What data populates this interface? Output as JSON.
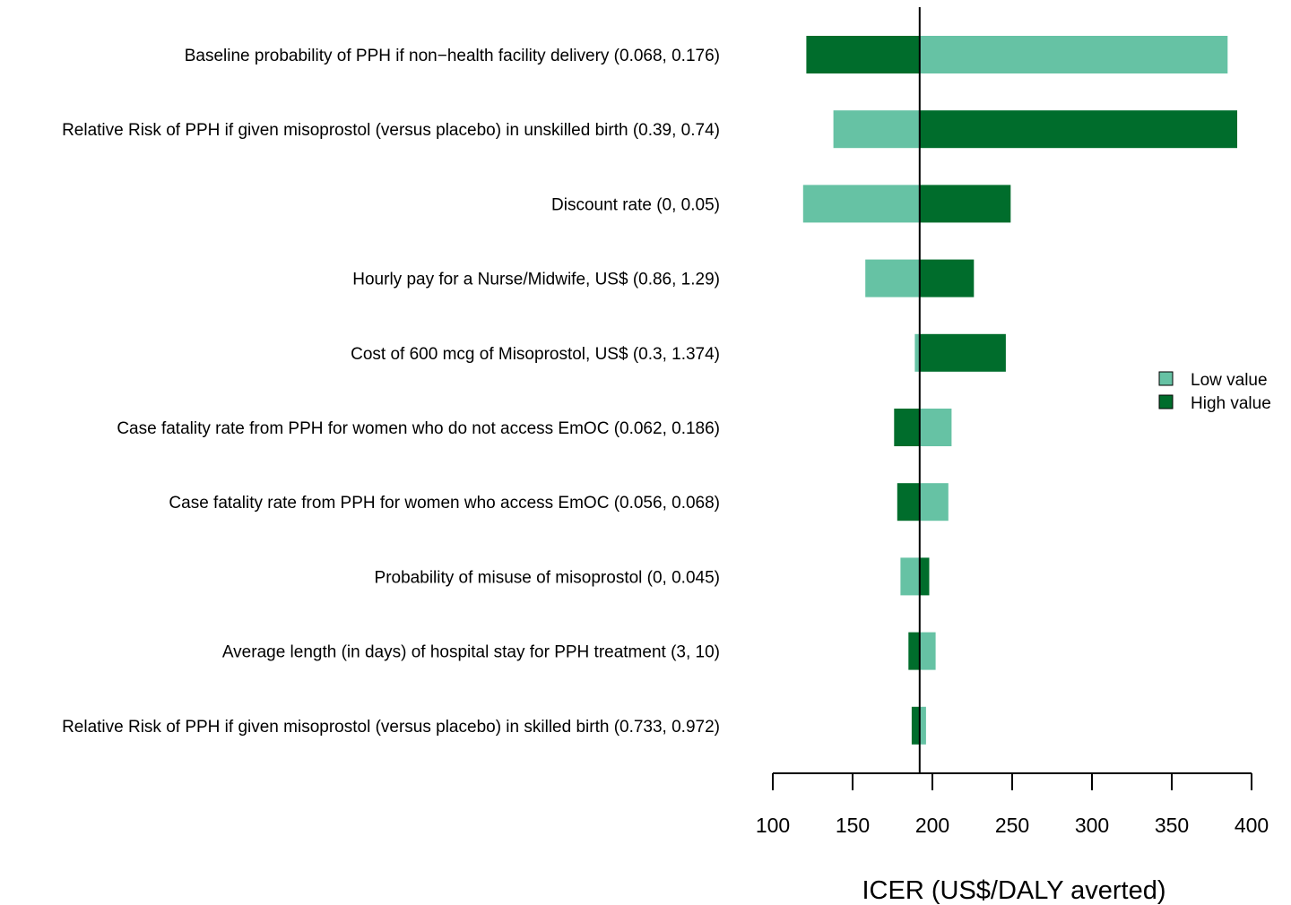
{
  "chart_data": {
    "type": "bar",
    "orientation": "horizontal",
    "subtype": "tornado",
    "xlabel": "ICER (US$/DALY averted)",
    "xlim": [
      100,
      400
    ],
    "xticks": [
      100,
      150,
      200,
      250,
      300,
      350,
      400
    ],
    "baseline": 192,
    "legend": {
      "placement": "right",
      "entries": [
        {
          "name": "Low value",
          "color": "#66c2a4"
        },
        {
          "name": "High value",
          "color": "#006d2c"
        }
      ]
    },
    "categories": [
      "Baseline probability of PPH if non−health facility delivery (0.068, 0.176)",
      "Relative Risk of PPH if given misoprostol (versus placebo) in unskilled birth (0.39, 0.74)",
      "Discount rate (0, 0.05)",
      "Hourly pay for a Nurse/Midwife, US$ (0.86, 1.29)",
      "Cost of 600 mcg of Misoprostol, US$ (0.3, 1.374)",
      "Case fatality rate from PPH for women who do not access EmOC (0.062, 0.186)",
      "Case fatality rate from PPH for women who access EmOC (0.056, 0.068)",
      "Probability of misuse of misoprostol (0, 0.045)",
      "Average length (in days) of hospital stay for PPH treatment (3, 10)",
      "Relative Risk of PPH if given misoprostol (versus placebo) in skilled birth (0.733, 0.972)"
    ],
    "series": [
      {
        "name": "Low value",
        "values": [
          385,
          138,
          119,
          158,
          189,
          212,
          210,
          180,
          202,
          196
        ]
      },
      {
        "name": "High value",
        "values": [
          121,
          391,
          249,
          226,
          246,
          176,
          178,
          198,
          185,
          187
        ]
      }
    ]
  }
}
